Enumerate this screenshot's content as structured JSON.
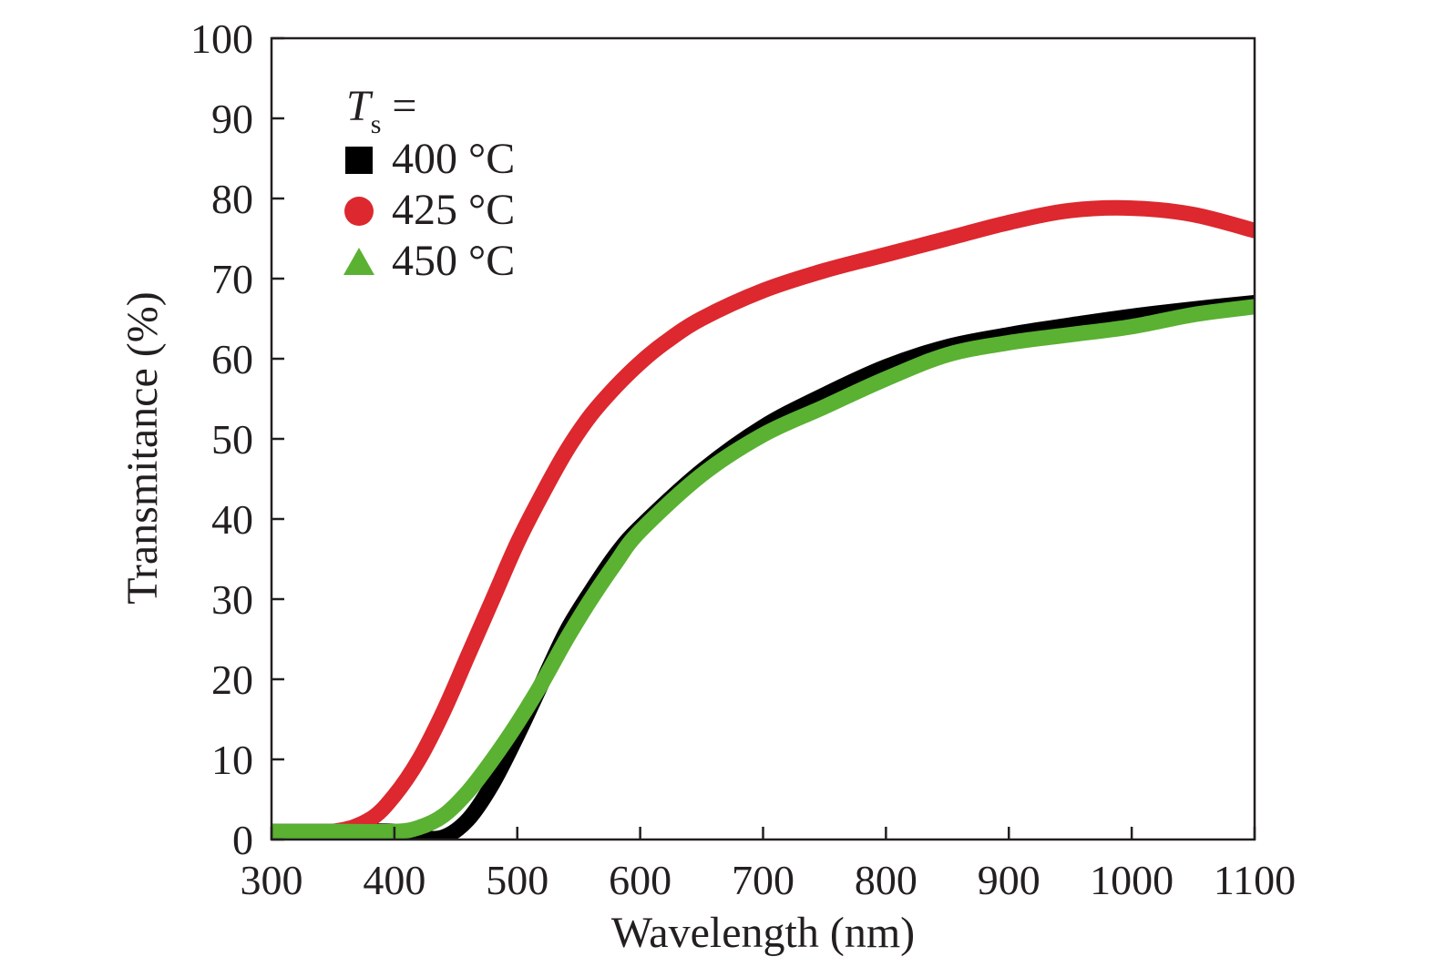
{
  "chart_data": {
    "type": "line",
    "title": "",
    "xlabel": "Wavelength (nm)",
    "ylabel": "Transmitance (%)",
    "xlim": [
      300,
      1100
    ],
    "ylim": [
      0,
      100
    ],
    "xticks": [
      300,
      400,
      500,
      600,
      700,
      800,
      900,
      1000,
      1100
    ],
    "yticks": [
      0,
      10,
      20,
      30,
      40,
      50,
      60,
      70,
      80,
      90,
      100
    ],
    "grid": false,
    "legend": {
      "placement": "top-left",
      "title_symbol": "T",
      "title_subscript": "s",
      "title_suffix": " ="
    },
    "series": [
      {
        "name": "400 °C",
        "marker": "square",
        "color": "#000000",
        "x": [
          300,
          350,
          400,
          420,
          440,
          460,
          480,
          500,
          520,
          540,
          560,
          580,
          600,
          650,
          700,
          750,
          800,
          850,
          900,
          950,
          1000,
          1050,
          1100
        ],
        "y": [
          1,
          1,
          1,
          0.3,
          0.3,
          2.5,
          7,
          13,
          19.5,
          26,
          31,
          35.5,
          39,
          46,
          51.5,
          55.5,
          59,
          61.5,
          63,
          64.2,
          65.3,
          66.2,
          67
        ]
      },
      {
        "name": "425 °C",
        "marker": "circle",
        "color": "#dc282e",
        "x": [
          300,
          350,
          380,
          400,
          420,
          440,
          460,
          480,
          500,
          520,
          540,
          560,
          580,
          600,
          620,
          650,
          700,
          750,
          800,
          850,
          900,
          950,
          1000,
          1050,
          1100
        ],
        "y": [
          1,
          1,
          2.5,
          5.5,
          10,
          16,
          23,
          30,
          37,
          43,
          48.5,
          53,
          56.5,
          59.5,
          62,
          65,
          68.5,
          71,
          73,
          75,
          77,
          78.5,
          78.8,
          78,
          76
        ]
      },
      {
        "name": "450 °C",
        "marker": "triangle",
        "color": "#5ab132",
        "x": [
          300,
          350,
          400,
          420,
          440,
          460,
          480,
          500,
          520,
          540,
          560,
          580,
          600,
          650,
          700,
          750,
          800,
          850,
          900,
          950,
          1000,
          1050,
          1100
        ],
        "y": [
          1,
          1,
          1,
          1.5,
          3,
          6,
          10,
          14.5,
          19.5,
          25,
          30,
          34.5,
          38.5,
          45.5,
          50.5,
          54,
          57.5,
          60.5,
          62,
          63,
          64,
          65.5,
          66.5
        ]
      }
    ]
  }
}
